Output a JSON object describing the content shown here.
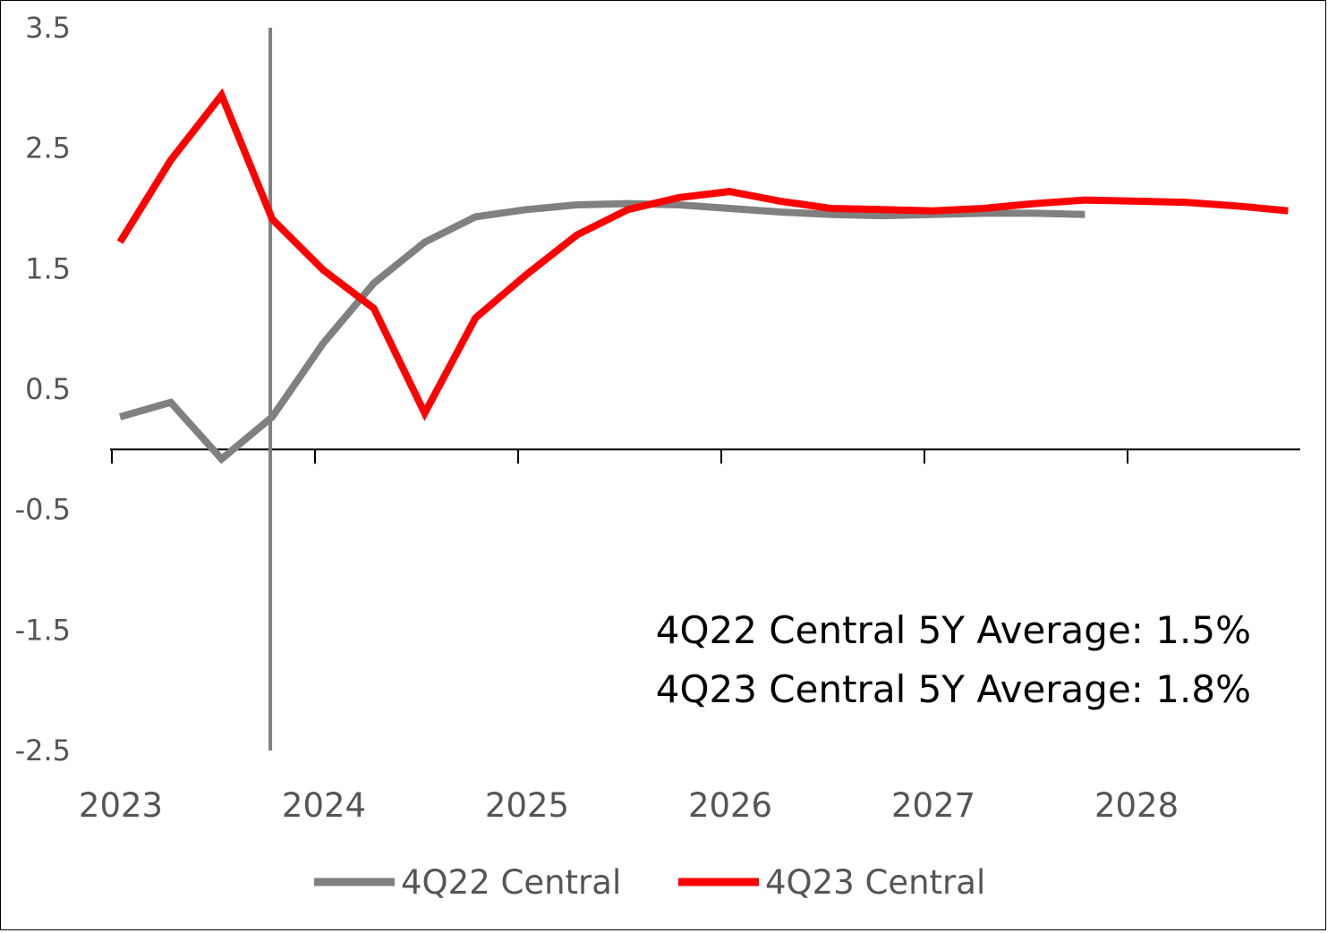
{
  "chart_data": {
    "type": "line",
    "title": "",
    "xlabel": "",
    "ylabel": "",
    "ylim": [
      -2.5,
      3.5
    ],
    "yticks": [
      3.5,
      2.5,
      1.5,
      0.5,
      -0.5,
      -1.5,
      -2.5
    ],
    "ytick_labels": [
      "3.5",
      "2.5",
      "1.5",
      "0.5",
      "-0.5",
      "-1.5",
      "-2.5"
    ],
    "xlim": [
      2023,
      2028.85
    ],
    "xticks": [
      2023,
      2024,
      2025,
      2026,
      2027,
      2028
    ],
    "xtick_labels": [
      "2023",
      "2024",
      "2025",
      "2026",
      "2027",
      "2028"
    ],
    "grid": false,
    "vertical_marker_x": 2023.78,
    "series": [
      {
        "name": "4Q22 Central",
        "color": "#808080",
        "x": [
          2023.04,
          2023.29,
          2023.54,
          2023.79,
          2024.04,
          2024.29,
          2024.54,
          2024.79,
          2025.04,
          2025.29,
          2025.54,
          2025.79,
          2026.04,
          2026.29,
          2026.54,
          2026.79,
          2027.04,
          2027.29,
          2027.54,
          2027.79
        ],
        "y": [
          0.27,
          0.39,
          -0.08,
          0.27,
          0.88,
          1.38,
          1.72,
          1.93,
          1.99,
          2.03,
          2.04,
          2.03,
          2.0,
          1.97,
          1.95,
          1.94,
          1.95,
          1.96,
          1.96,
          1.95
        ]
      },
      {
        "name": "4Q23 Central",
        "color": "#ff0000",
        "x": [
          2023.04,
          2023.29,
          2023.54,
          2023.79,
          2024.04,
          2024.29,
          2024.54,
          2024.79,
          2025.04,
          2025.29,
          2025.54,
          2025.79,
          2026.04,
          2026.29,
          2026.54,
          2026.79,
          2027.04,
          2027.29,
          2027.54,
          2027.79,
          2028.04,
          2028.29,
          2028.54,
          2028.79
        ],
        "y": [
          1.72,
          2.4,
          2.94,
          1.91,
          1.49,
          1.17,
          0.3,
          1.09,
          1.45,
          1.78,
          1.99,
          2.09,
          2.14,
          2.06,
          2.0,
          1.99,
          1.98,
          2.0,
          2.04,
          2.07,
          2.06,
          2.05,
          2.02,
          1.98
        ]
      }
    ],
    "annotations": [
      "4Q22 Central 5Y Average: 1.5%",
      "4Q23 Central 5Y Average: 1.8%"
    ],
    "legend_position": "bottom"
  }
}
